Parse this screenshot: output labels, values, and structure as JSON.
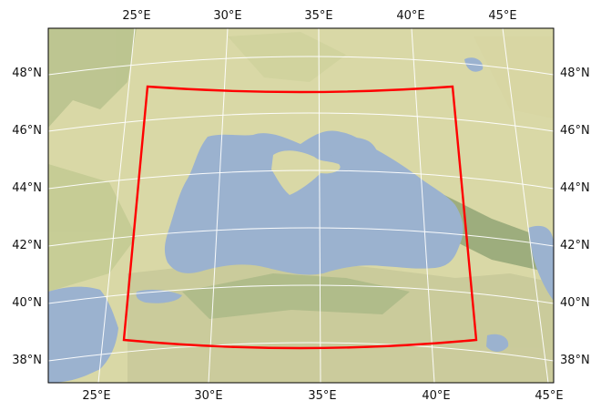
{
  "map": {
    "projection": "conic",
    "basemap": "shaded-relief",
    "region_box": {
      "color": "#ff0000",
      "corners_lonlat": [
        [
          26.2,
          47.6
        ],
        [
          42.6,
          47.6
        ],
        [
          43.6,
          38.7
        ],
        [
          26.2,
          38.7
        ]
      ]
    },
    "colors": {
      "sea": "#9bb2cf",
      "land": "#d9d8a6",
      "land_alt": "#c9cf98",
      "mountains": "#98a878",
      "graticule": "#ffffff"
    },
    "labels": {
      "top_lon": [
        "25°E",
        "30°E",
        "35°E",
        "40°E",
        "45°E"
      ],
      "bottom_lon": [
        "25°E",
        "30°E",
        "35°E",
        "40°E",
        "45°E"
      ],
      "left_lat": [
        "48°N",
        "46°N",
        "44°N",
        "42°N",
        "40°N",
        "38°N"
      ],
      "right_lat": [
        "48°N",
        "46°N",
        "44°N",
        "42°N",
        "40°N",
        "38°N"
      ]
    }
  }
}
